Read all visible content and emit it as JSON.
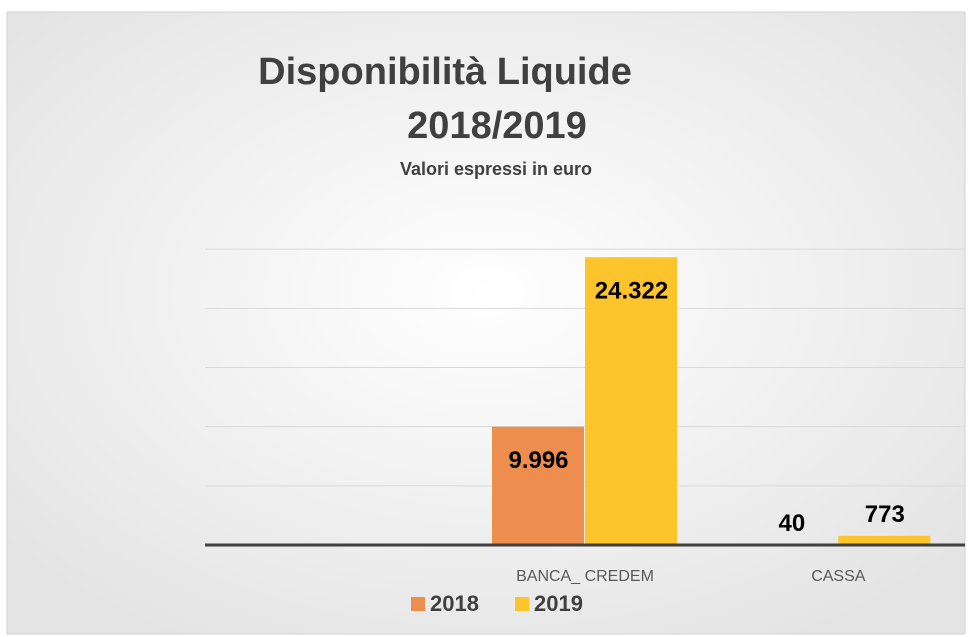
{
  "chart_data": {
    "type": "bar",
    "title": [
      "Disponibilità Liquide",
      "2018/2019"
    ],
    "subtitle": "Valori espressi in euro",
    "categories": [
      null,
      "BANCA_ CREDEM",
      "CASSA"
    ],
    "series": [
      {
        "name": "2018",
        "color": "#ed8e4f",
        "values": [
          null,
          9996,
          40
        ],
        "value_labels": [
          null,
          "9.996",
          "40"
        ]
      },
      {
        "name": "2019",
        "color": "#fdc52b",
        "values": [
          null,
          24322,
          773
        ],
        "value_labels": [
          null,
          "24.322",
          "773"
        ]
      }
    ],
    "ylim": [
      0,
      30000
    ],
    "yticks": [
      0,
      5000,
      10000,
      15000,
      20000,
      25000
    ],
    "grid": true,
    "legend": "bottom"
  }
}
